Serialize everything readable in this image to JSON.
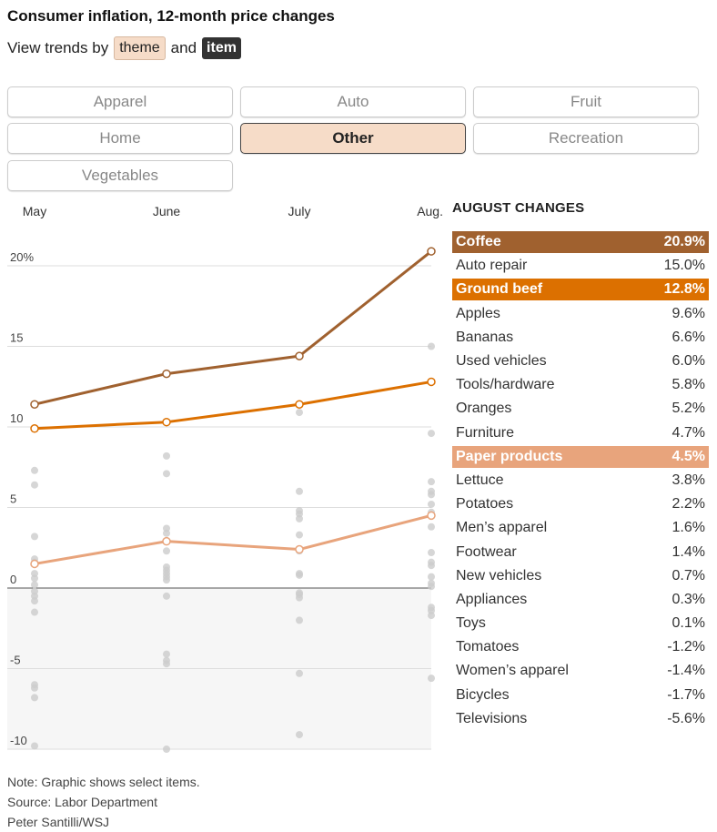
{
  "title": "Consumer inflation, 12-month price changes",
  "subtitle": {
    "prefix": "View trends by",
    "theme": "theme",
    "and": "and",
    "item": "item"
  },
  "tabs": [
    {
      "label": "Apparel",
      "active": false
    },
    {
      "label": "Auto",
      "active": false
    },
    {
      "label": "Fruit",
      "active": false
    },
    {
      "label": "Home",
      "active": false
    },
    {
      "label": "Other",
      "active": true
    },
    {
      "label": "Recreation",
      "active": false
    },
    {
      "label": "Vegetables",
      "active": false
    }
  ],
  "changes": {
    "header": "AUGUST CHANGES",
    "rows": [
      {
        "label": "Coffee",
        "value": "20.9%",
        "color": "#a0612f"
      },
      {
        "label": "Auto repair",
        "value": "15.0%"
      },
      {
        "label": "Ground beef",
        "value": "12.8%",
        "color": "#dc7000"
      },
      {
        "label": "Apples",
        "value": "9.6%"
      },
      {
        "label": "Bananas",
        "value": "6.6%"
      },
      {
        "label": "Used vehicles",
        "value": "6.0%"
      },
      {
        "label": "Tools/hardware",
        "value": "5.8%"
      },
      {
        "label": "Oranges",
        "value": "5.2%"
      },
      {
        "label": "Furniture",
        "value": "4.7%"
      },
      {
        "label": "Paper products",
        "value": "4.5%",
        "color": "#e8a47c"
      },
      {
        "label": "Lettuce",
        "value": "3.8%"
      },
      {
        "label": "Potatoes",
        "value": "2.2%"
      },
      {
        "label": "Men’s apparel",
        "value": "1.6%"
      },
      {
        "label": "Footwear",
        "value": "1.4%"
      },
      {
        "label": "New vehicles",
        "value": "0.7%"
      },
      {
        "label": "Appliances",
        "value": "0.3%"
      },
      {
        "label": "Toys",
        "value": "0.1%"
      },
      {
        "label": "Tomatoes",
        "value": "-1.2%"
      },
      {
        "label": "Women’s apparel",
        "value": "-1.4%"
      },
      {
        "label": "Bicycles",
        "value": "-1.7%"
      },
      {
        "label": "Televisions",
        "value": "-5.6%"
      }
    ]
  },
  "chart_data": {
    "type": "line",
    "x": [
      "May",
      "June",
      "July",
      "Aug."
    ],
    "ylim": [
      -10,
      21
    ],
    "yticks": [
      {
        "value": 20,
        "label": "20%"
      },
      {
        "value": 15,
        "label": "15"
      },
      {
        "value": 10,
        "label": "10"
      },
      {
        "value": 5,
        "label": "5"
      },
      {
        "value": 0,
        "label": "0"
      },
      {
        "value": -5,
        "label": "-5"
      },
      {
        "value": -10,
        "label": "-10"
      }
    ],
    "series": [
      {
        "name": "Coffee",
        "color": "#a0612f",
        "values": [
          11.4,
          13.3,
          14.4,
          20.9
        ]
      },
      {
        "name": "Ground beef",
        "color": "#dc7000",
        "values": [
          9.9,
          10.3,
          11.4,
          12.8
        ]
      },
      {
        "name": "Paper products",
        "color": "#e8a47c",
        "values": [
          1.5,
          2.9,
          2.4,
          4.5
        ]
      }
    ],
    "background_points": [
      [
        7.3,
        6.4,
        3.2,
        1.8,
        1.6,
        0.9,
        0.6,
        0.2,
        -0.2,
        -0.5,
        -0.8,
        -1.5,
        -6.0,
        -6.2,
        -6.8,
        -9.8
      ],
      [
        8.2,
        7.1,
        3.7,
        3.4,
        2.3,
        1.3,
        1.1,
        0.9,
        0.7,
        0.5,
        -0.5,
        -4.1,
        -4.5,
        -4.7,
        -10.0
      ],
      [
        10.9,
        6.0,
        4.8,
        4.6,
        4.3,
        3.3,
        2.3,
        0.9,
        0.8,
        -0.3,
        -0.4,
        -0.6,
        -2.0,
        -5.3,
        -9.1
      ],
      [
        15.0,
        9.6,
        6.6,
        6.0,
        5.8,
        5.2,
        4.7,
        3.8,
        2.2,
        1.6,
        1.4,
        0.7,
        0.3,
        0.1,
        -1.2,
        -1.4,
        -1.7,
        -5.6
      ]
    ]
  },
  "footer": {
    "note": "Note: Graphic shows select items.",
    "source": "Source: Labor Department",
    "credit": "Peter Santilli/WSJ"
  }
}
